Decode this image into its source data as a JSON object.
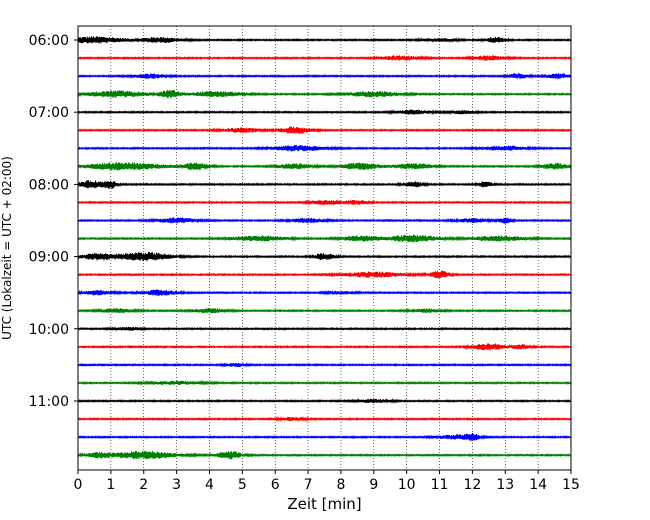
{
  "chart_data": {
    "type": "line",
    "title": "",
    "xlabel": "Zeit  [min]",
    "ylabel": "UTC (Lokalzeit = UTC + 02:00)",
    "xlim": [
      0,
      15
    ],
    "x_ticks": [
      "0",
      "1",
      "2",
      "3",
      "4",
      "5",
      "6",
      "7",
      "8",
      "9",
      "10",
      "11",
      "12",
      "13",
      "14",
      "15"
    ],
    "y_tick_labels": [
      "06:00",
      "07:00",
      "08:00",
      "09:00",
      "10:00",
      "11:00"
    ],
    "grid": "vertical dotted lines at each minute",
    "trace_colors": [
      "#000000",
      "#ff0000",
      "#0000ff",
      "#008000"
    ],
    "series": [
      {
        "start": "06:00",
        "color": "black",
        "bursts": [
          [
            0.5,
            0.9,
            0.6
          ],
          [
            2.5,
            0.6,
            0.5
          ],
          [
            12.7,
            0.3,
            0.5
          ],
          [
            11.0,
            0.5,
            0.3
          ]
        ]
      },
      {
        "start": "06:15",
        "color": "red",
        "bursts": [
          [
            9.8,
            0.6,
            0.4
          ],
          [
            12.5,
            0.5,
            0.4
          ]
        ]
      },
      {
        "start": "06:30",
        "color": "blue",
        "bursts": [
          [
            2.2,
            0.5,
            0.4
          ],
          [
            13.4,
            0.3,
            0.5
          ],
          [
            14.6,
            0.3,
            0.5
          ]
        ]
      },
      {
        "start": "06:45",
        "color": "green",
        "bursts": [
          [
            1.2,
            0.9,
            0.6
          ],
          [
            2.8,
            0.3,
            0.7
          ],
          [
            4.2,
            0.8,
            0.5
          ],
          [
            9.0,
            0.8,
            0.5
          ]
        ]
      },
      {
        "start": "07:00",
        "color": "black",
        "bursts": [
          [
            10.2,
            0.5,
            0.4
          ],
          [
            11.7,
            0.4,
            0.3
          ]
        ]
      },
      {
        "start": "07:15",
        "color": "red",
        "bursts": [
          [
            5.0,
            0.6,
            0.4
          ],
          [
            6.6,
            0.5,
            0.6
          ]
        ]
      },
      {
        "start": "07:30",
        "color": "blue",
        "bursts": [
          [
            6.7,
            0.8,
            0.5
          ],
          [
            13.0,
            0.7,
            0.4
          ]
        ]
      },
      {
        "start": "07:45",
        "color": "green",
        "bursts": [
          [
            1.4,
            1.2,
            0.7
          ],
          [
            3.6,
            0.4,
            0.7
          ],
          [
            6.6,
            0.5,
            0.5
          ],
          [
            8.6,
            0.6,
            0.6
          ],
          [
            10.2,
            0.6,
            0.5
          ],
          [
            14.5,
            0.4,
            0.6
          ]
        ]
      },
      {
        "start": "08:00",
        "color": "black",
        "bursts": [
          [
            0.4,
            0.4,
            0.7
          ],
          [
            1.0,
            0.2,
            0.7
          ],
          [
            10.2,
            0.3,
            0.5
          ],
          [
            12.4,
            0.2,
            0.6
          ]
        ]
      },
      {
        "start": "08:15",
        "color": "red",
        "bursts": [
          [
            7.6,
            0.5,
            0.4
          ],
          [
            8.5,
            0.3,
            0.4
          ]
        ]
      },
      {
        "start": "08:30",
        "color": "blue",
        "bursts": [
          [
            3.0,
            0.6,
            0.5
          ],
          [
            7.0,
            0.5,
            0.4
          ],
          [
            12.0,
            0.5,
            0.4
          ],
          [
            13.0,
            0.2,
            0.5
          ]
        ]
      },
      {
        "start": "08:45",
        "color": "green",
        "bursts": [
          [
            5.5,
            0.8,
            0.5
          ],
          [
            8.6,
            0.6,
            0.5
          ],
          [
            10.2,
            0.7,
            0.7
          ],
          [
            12.8,
            0.8,
            0.5
          ]
        ]
      },
      {
        "start": "09:00",
        "color": "black",
        "bursts": [
          [
            0.6,
            0.5,
            0.6
          ],
          [
            2.0,
            0.8,
            0.8
          ],
          [
            7.5,
            0.3,
            0.6
          ]
        ]
      },
      {
        "start": "09:15",
        "color": "red",
        "bursts": [
          [
            9.0,
            0.9,
            0.5
          ],
          [
            11.0,
            0.3,
            0.7
          ]
        ]
      },
      {
        "start": "09:30",
        "color": "blue",
        "bursts": [
          [
            0.6,
            0.5,
            0.4
          ],
          [
            2.5,
            0.5,
            0.5
          ],
          [
            8.0,
            0.4,
            0.3
          ]
        ]
      },
      {
        "start": "09:45",
        "color": "green",
        "bursts": [
          [
            1.2,
            0.5,
            0.4
          ],
          [
            4.0,
            0.5,
            0.4
          ],
          [
            10.6,
            0.5,
            0.3
          ]
        ]
      },
      {
        "start": "10:00",
        "color": "black",
        "bursts": [
          [
            1.5,
            0.4,
            0.3
          ]
        ]
      },
      {
        "start": "10:15",
        "color": "red",
        "bursts": [
          [
            12.5,
            0.5,
            0.6
          ],
          [
            13.5,
            0.3,
            0.4
          ]
        ]
      },
      {
        "start": "10:30",
        "color": "blue",
        "bursts": [
          [
            4.8,
            0.3,
            0.3
          ]
        ]
      },
      {
        "start": "10:45",
        "color": "green",
        "bursts": [
          [
            3.0,
            0.8,
            0.3
          ]
        ]
      },
      {
        "start": "11:00",
        "color": "black",
        "bursts": [
          [
            9.0,
            0.5,
            0.3
          ]
        ]
      },
      {
        "start": "11:15",
        "color": "red",
        "bursts": [
          [
            6.5,
            0.4,
            0.3
          ]
        ]
      },
      {
        "start": "11:30",
        "color": "blue",
        "bursts": [
          [
            11.5,
            0.6,
            0.4
          ],
          [
            12.0,
            0.2,
            0.5
          ]
        ]
      },
      {
        "start": "11:45",
        "color": "green",
        "bursts": [
          [
            2.0,
            1.0,
            0.7
          ],
          [
            4.6,
            0.4,
            0.7
          ],
          [
            0.6,
            0.4,
            0.4
          ]
        ]
      }
    ]
  }
}
